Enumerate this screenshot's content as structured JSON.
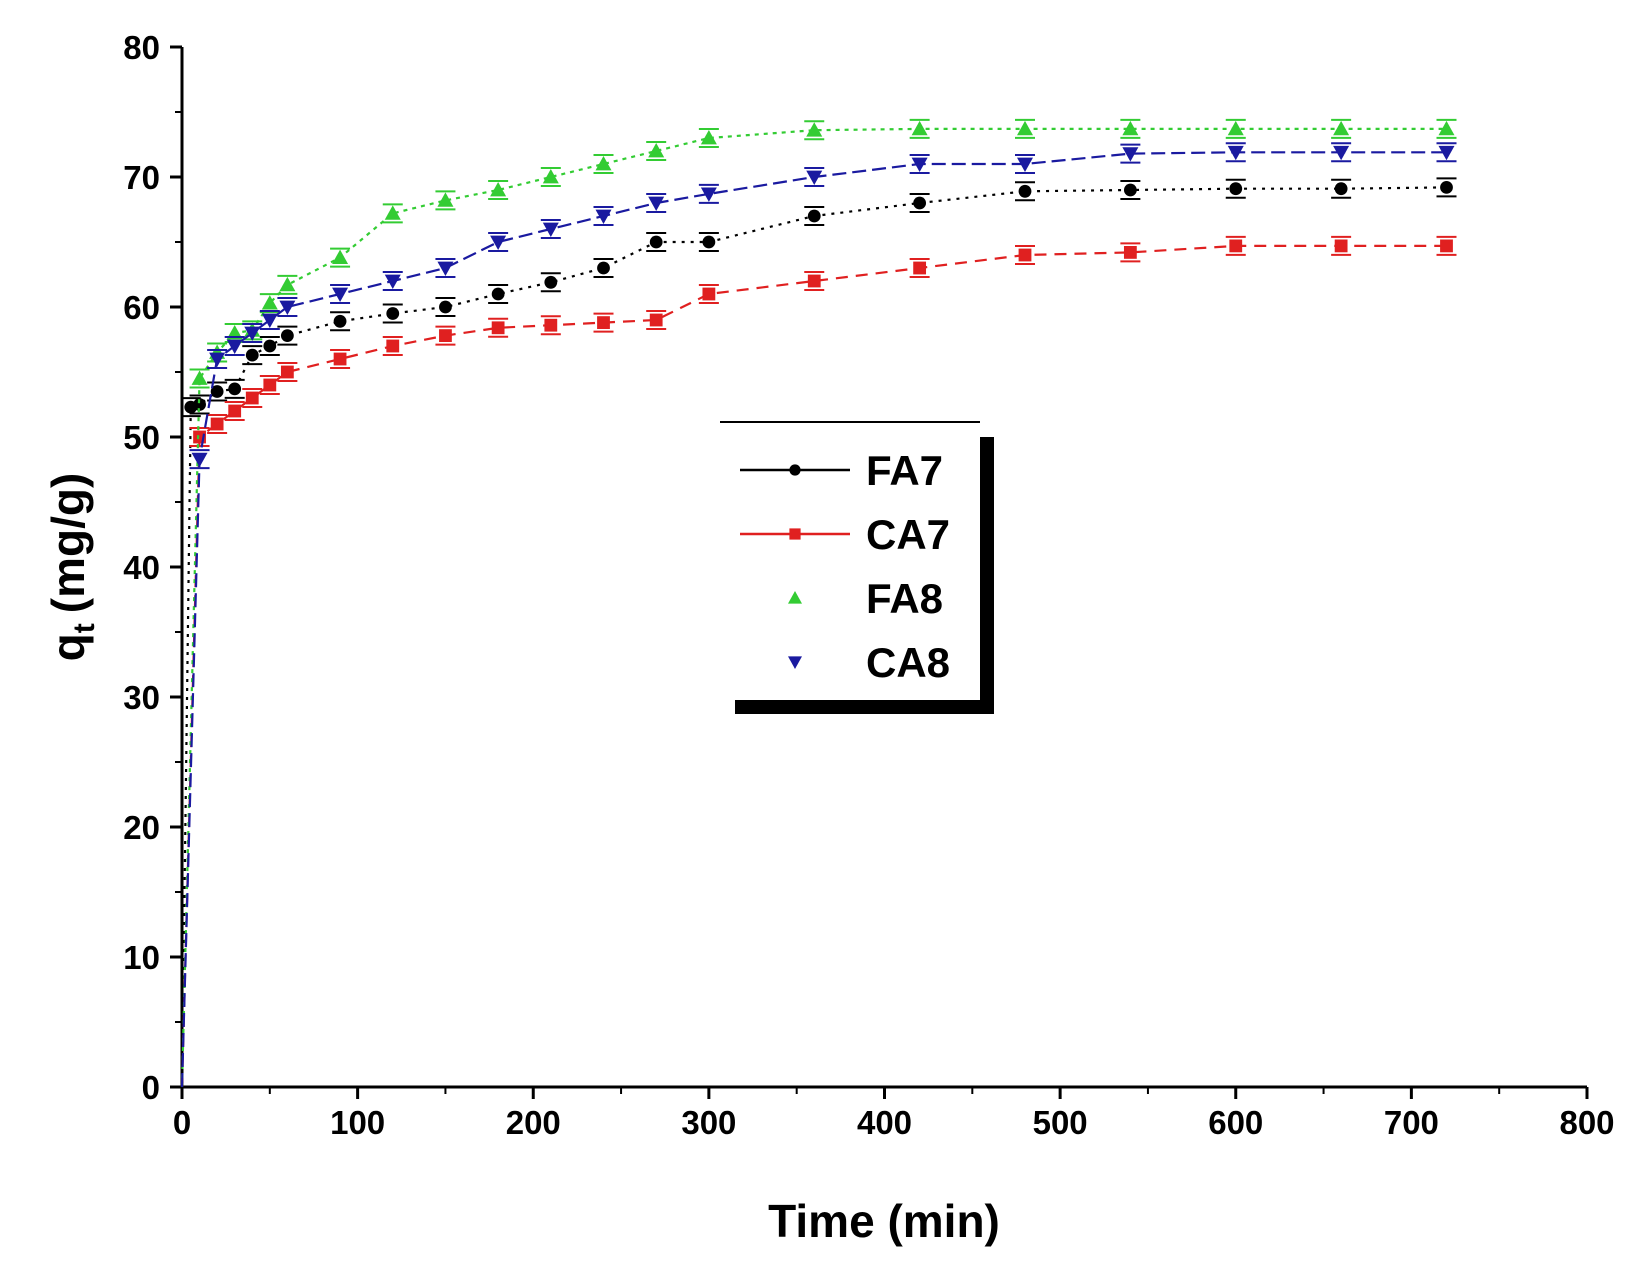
{
  "chart_data": {
    "type": "line",
    "title": "",
    "xlabel": "Time (min)",
    "ylabel": "q",
    "ylabel_sub": "t",
    "ylabel_unit": "(mg/g)",
    "xlim": [
      0,
      800
    ],
    "ylim": [
      0,
      80
    ],
    "xticks": [
      0,
      100,
      200,
      300,
      400,
      500,
      600,
      700,
      800
    ],
    "yticks": [
      0,
      10,
      20,
      30,
      40,
      50,
      60,
      70,
      80
    ],
    "grid": false,
    "legend_position": "center",
    "series": [
      {
        "name": "FA7",
        "color": "#000000",
        "marker": "circle",
        "x": [
          0,
          5,
          10,
          20,
          30,
          40,
          50,
          60,
          90,
          120,
          150,
          180,
          210,
          240,
          270,
          300,
          360,
          420,
          480,
          540,
          600,
          660,
          720
        ],
        "y": [
          0,
          52.3,
          52.5,
          53.5,
          53.7,
          56.3,
          57.0,
          57.8,
          58.9,
          59.5,
          60.0,
          61.0,
          61.9,
          63.0,
          65.0,
          65.0,
          67.0,
          68.0,
          68.9,
          69.0,
          69.1,
          69.1,
          69.2
        ]
      },
      {
        "name": "CA7",
        "color": "#e02020",
        "marker": "square",
        "x": [
          0,
          10,
          20,
          30,
          40,
          50,
          60,
          90,
          120,
          150,
          180,
          210,
          240,
          270,
          300,
          360,
          420,
          480,
          540,
          600,
          660,
          720
        ],
        "y": [
          0,
          50.0,
          51.0,
          52.0,
          53.0,
          54.0,
          55.0,
          56.0,
          57.0,
          57.8,
          58.4,
          58.6,
          58.8,
          59.0,
          61.0,
          62.0,
          63.0,
          64.0,
          64.2,
          64.7,
          64.7,
          64.7
        ]
      },
      {
        "name": "FA8",
        "color": "#33cc33",
        "marker": "triangle-up",
        "x": [
          0,
          10,
          20,
          30,
          40,
          50,
          60,
          90,
          120,
          150,
          180,
          210,
          240,
          270,
          300,
          360,
          420,
          480,
          540,
          600,
          660,
          720
        ],
        "y": [
          0,
          54.5,
          56.5,
          58.0,
          58.2,
          60.3,
          61.7,
          63.8,
          67.2,
          68.2,
          69.0,
          70.0,
          71.0,
          72.0,
          73.0,
          73.6,
          73.7,
          73.7,
          73.7,
          73.7,
          73.7,
          73.7
        ]
      },
      {
        "name": "CA8",
        "color": "#1a1aa0",
        "marker": "triangle-down",
        "x": [
          0,
          10,
          20,
          30,
          40,
          50,
          60,
          90,
          120,
          150,
          180,
          210,
          240,
          270,
          300,
          360,
          420,
          480,
          540,
          600,
          660,
          720
        ],
        "y": [
          0,
          48.3,
          56.0,
          57.0,
          58.0,
          59.0,
          60.0,
          61.0,
          62.0,
          63.0,
          65.0,
          66.0,
          67.0,
          68.0,
          68.7,
          70.0,
          71.0,
          71.0,
          71.8,
          71.9,
          71.9,
          71.9
        ]
      }
    ]
  }
}
